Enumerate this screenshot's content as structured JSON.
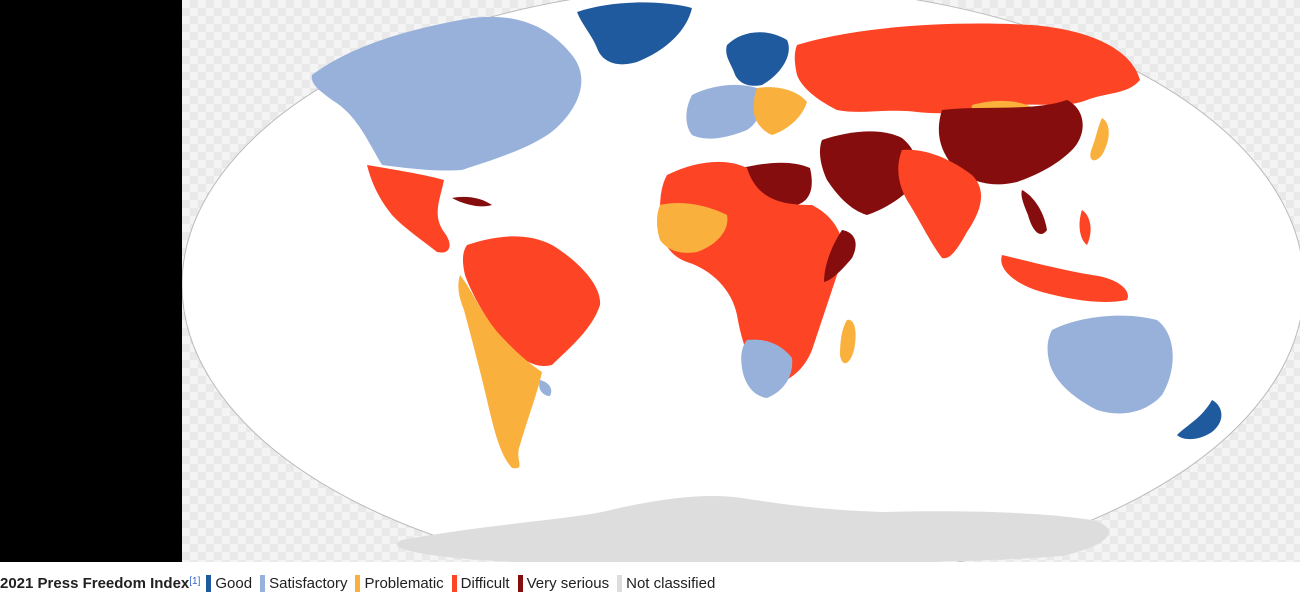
{
  "caption": {
    "title": "2021 Press Freedom Index",
    "reference": "[1]"
  },
  "legend": [
    {
      "label": "Good",
      "color": "#205a9e"
    },
    {
      "label": "Satisfactory",
      "color": "#98b1db"
    },
    {
      "label": "Problematic",
      "color": "#fab03c"
    },
    {
      "label": "Difficult",
      "color": "#fd4424"
    },
    {
      "label": "Very serious",
      "color": "#850d0d"
    },
    {
      "label": "Not classified",
      "color": "#dddddd"
    }
  ],
  "colors": {
    "ocean": "#ffffff",
    "border": "#cccccc",
    "good": "#205a9e",
    "satisfactory": "#98b1db",
    "problematic": "#fab03c",
    "difficult": "#fd4424",
    "very_serious": "#850d0d",
    "not_classified": "#dddddd"
  }
}
